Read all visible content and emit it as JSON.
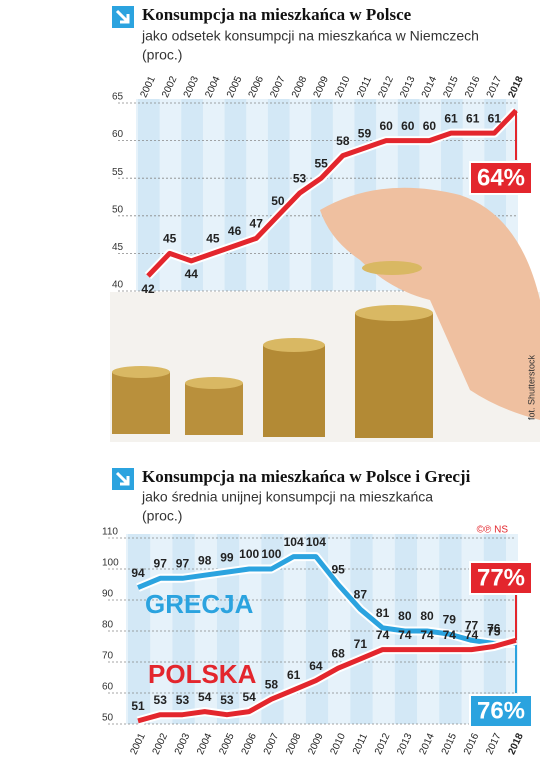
{
  "chart_data": [
    {
      "type": "line",
      "title": "Konsumpcja na mieszkańca w Polsce",
      "subtitle": "jako odsetek konsumpcji na mieszkańca w Niemczech",
      "unit": "(proc.)",
      "categories": [
        "2001",
        "2002",
        "2003",
        "2004",
        "2005",
        "2006",
        "2007",
        "2008",
        "2009",
        "2010",
        "2011",
        "2012",
        "2013",
        "2014",
        "2015",
        "2016",
        "2017",
        "2018"
      ],
      "series": [
        {
          "color": "#e3262d",
          "values": [
            42,
            45,
            44,
            45,
            46,
            47,
            50,
            53,
            55,
            58,
            59,
            60,
            60,
            60,
            61,
            61,
            61,
            64
          ],
          "value_labels": [
            "42",
            "45",
            "44",
            "45",
            "46",
            "47",
            "50",
            "53",
            "55",
            "58",
            "59",
            "60",
            "60",
            "60",
            "61",
            "61",
            "61",
            "64%"
          ]
        }
      ],
      "ylim": [
        40,
        65
      ],
      "yticks": [
        40,
        45,
        50,
        55,
        60,
        65
      ],
      "grid": true,
      "xaxis": "top"
    },
    {
      "type": "line",
      "title": "Konsumpcja na mieszkańca w Polsce i Grecji",
      "subtitle": "jako średnia unijnej konsumpcji na mieszkańca",
      "unit": "(proc.)",
      "categories": [
        "2001",
        "2002",
        "2003",
        "2004",
        "2005",
        "2006",
        "2007",
        "2008",
        "2009",
        "2010",
        "2011",
        "2012",
        "2013",
        "2014",
        "2015",
        "2016",
        "2017",
        "2018"
      ],
      "series": [
        {
          "name": "GRECJA",
          "color": "#2ba3df",
          "values": [
            94,
            97,
            97,
            98,
            99,
            100,
            100,
            104,
            104,
            95,
            87,
            81,
            80,
            80,
            79,
            77,
            76,
            76
          ],
          "value_labels": [
            "94",
            "97",
            "97",
            "98",
            "99",
            "100",
            "100",
            "104",
            "104",
            "95",
            "87",
            "81",
            "80",
            "80",
            "79",
            "77",
            "76",
            "76%"
          ]
        },
        {
          "name": "POLSKA",
          "color": "#e3262d",
          "values": [
            51,
            53,
            53,
            54,
            53,
            54,
            58,
            61,
            64,
            68,
            71,
            74,
            74,
            74,
            74,
            74,
            75,
            77
          ],
          "value_labels": [
            "51",
            "53",
            "53",
            "54",
            "53",
            "54",
            "58",
            "61",
            "64",
            "68",
            "71",
            "74",
            "74",
            "74",
            "74",
            "74",
            "75",
            "77%"
          ]
        }
      ],
      "ylim": [
        50,
        110
      ],
      "yticks": [
        50,
        60,
        70,
        80,
        90,
        100,
        110
      ],
      "grid": true,
      "xaxis": "bottom"
    }
  ],
  "credit": "fot. Shutterstock",
  "copyright": "©℗ NS"
}
